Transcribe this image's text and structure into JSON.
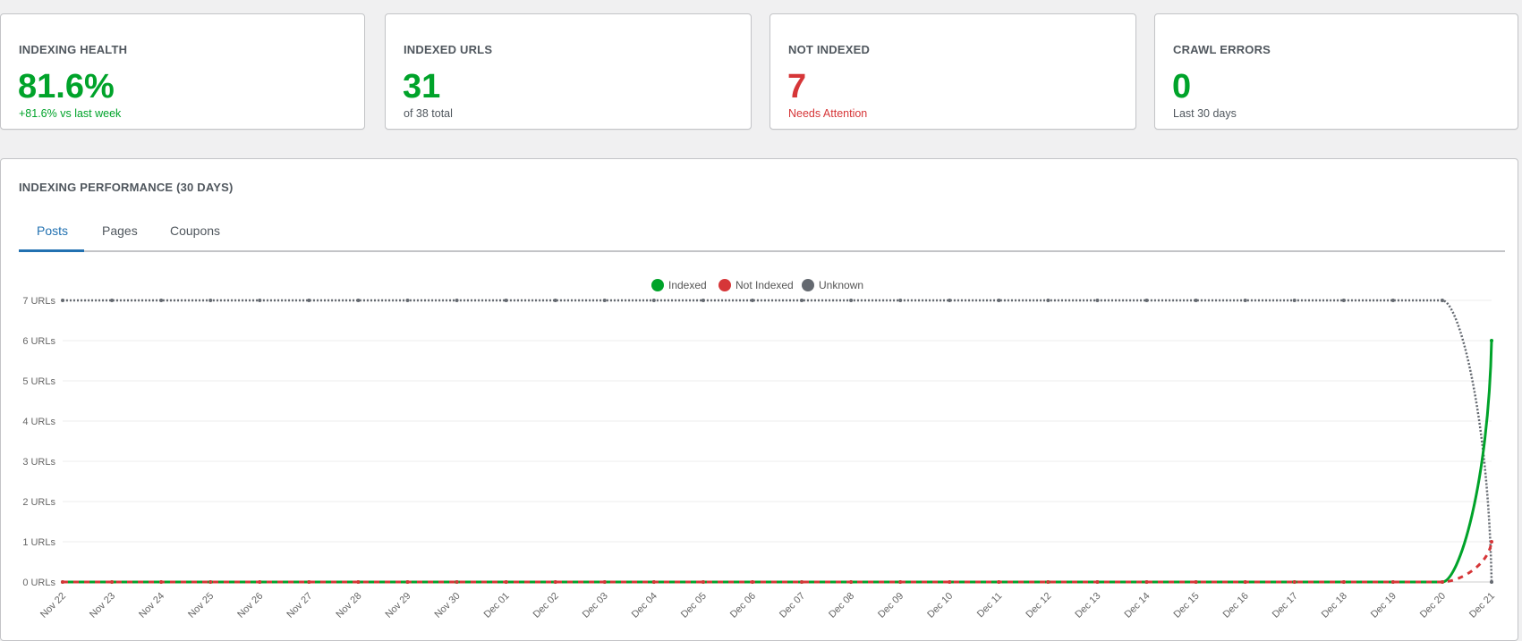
{
  "cards": [
    {
      "title": "INDEXING HEALTH",
      "value": "81.6%",
      "sub": "+81.6% vs last week"
    },
    {
      "title": "INDEXED URLS",
      "value": "31",
      "sub": "of 38 total"
    },
    {
      "title": "NOT INDEXED",
      "value": "7",
      "sub": "Needs Attention"
    },
    {
      "title": "CRAWL ERRORS",
      "value": "0",
      "sub": "Last 30 days"
    }
  ],
  "panel": {
    "title": "INDEXING PERFORMANCE (30 DAYS)",
    "tabs": [
      "Posts",
      "Pages",
      "Coupons"
    ],
    "active_tab": "Posts"
  },
  "colors": {
    "indexed": "#00a32a",
    "not_indexed": "#d63638",
    "unknown": "#646970"
  },
  "chart_data": {
    "type": "line",
    "x": [
      "Nov 22",
      "Nov 23",
      "Nov 24",
      "Nov 25",
      "Nov 26",
      "Nov 27",
      "Nov 28",
      "Nov 29",
      "Nov 30",
      "Dec 01",
      "Dec 02",
      "Dec 03",
      "Dec 04",
      "Dec 05",
      "Dec 06",
      "Dec 07",
      "Dec 08",
      "Dec 09",
      "Dec 10",
      "Dec 11",
      "Dec 12",
      "Dec 13",
      "Dec 14",
      "Dec 15",
      "Dec 16",
      "Dec 17",
      "Dec 18",
      "Dec 19",
      "Dec 20",
      "Dec 21"
    ],
    "y_ticks": [
      "0 URLs",
      "1 URLs",
      "2 URLs",
      "3 URLs",
      "4 URLs",
      "5 URLs",
      "6 URLs",
      "7 URLs"
    ],
    "ylim": [
      0,
      7
    ],
    "legend_position": "top-center",
    "series": [
      {
        "name": "Indexed",
        "style": "solid",
        "values": [
          0,
          0,
          0,
          0,
          0,
          0,
          0,
          0,
          0,
          0,
          0,
          0,
          0,
          0,
          0,
          0,
          0,
          0,
          0,
          0,
          0,
          0,
          0,
          0,
          0,
          0,
          0,
          0,
          0,
          6
        ]
      },
      {
        "name": "Not Indexed",
        "style": "dashed",
        "values": [
          0,
          0,
          0,
          0,
          0,
          0,
          0,
          0,
          0,
          0,
          0,
          0,
          0,
          0,
          0,
          0,
          0,
          0,
          0,
          0,
          0,
          0,
          0,
          0,
          0,
          0,
          0,
          0,
          0,
          1
        ]
      },
      {
        "name": "Unknown",
        "style": "dotted",
        "values": [
          7,
          7,
          7,
          7,
          7,
          7,
          7,
          7,
          7,
          7,
          7,
          7,
          7,
          7,
          7,
          7,
          7,
          7,
          7,
          7,
          7,
          7,
          7,
          7,
          7,
          7,
          7,
          7,
          7,
          0
        ]
      }
    ]
  }
}
